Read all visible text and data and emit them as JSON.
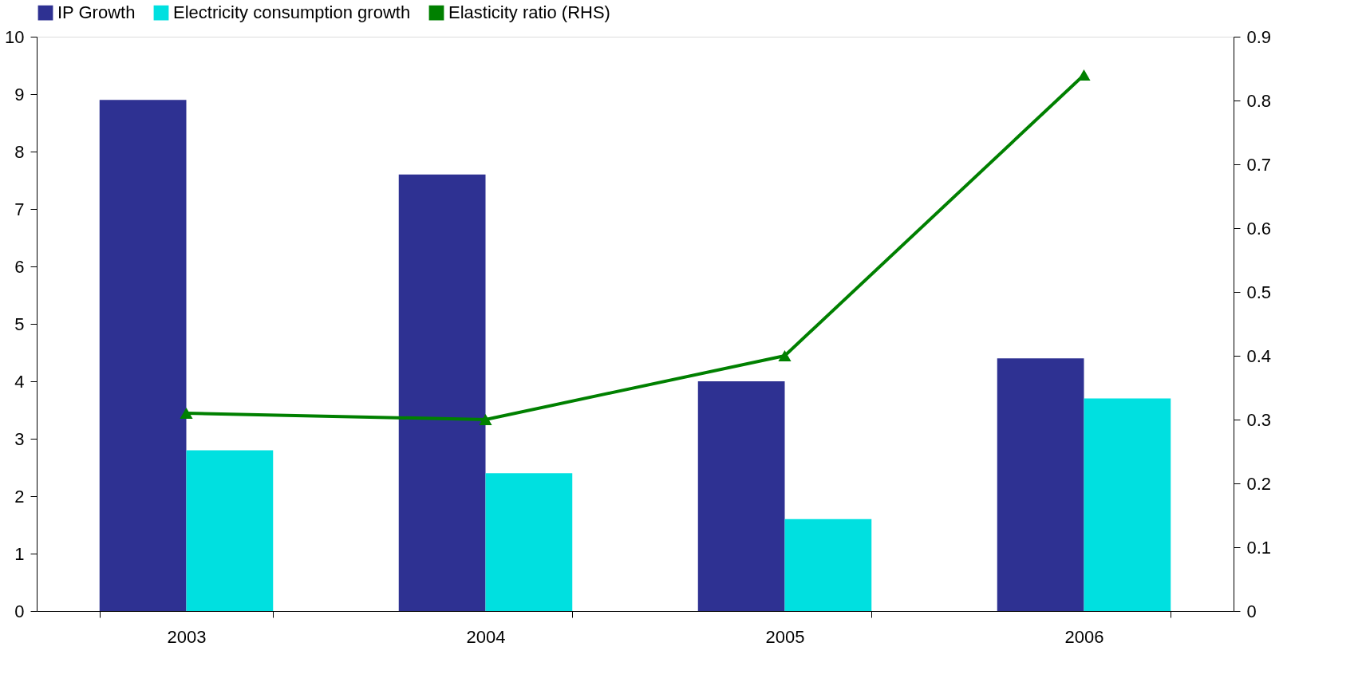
{
  "chart_data": {
    "type": "bar",
    "categories": [
      "2003",
      "2004",
      "2005",
      "2006"
    ],
    "series": [
      {
        "name": "IP Growth",
        "color": "#2e3192",
        "values": [
          8.9,
          7.6,
          4.0,
          4.4
        ]
      },
      {
        "name": "Electricity consumption growth",
        "color": "#00e0e0",
        "values": [
          2.8,
          2.4,
          1.6,
          3.7
        ]
      },
      {
        "name": "Elasticity ratio (RHS)",
        "color": "#008000",
        "type": "line",
        "axis": "y2",
        "marker": "triangle",
        "values": [
          0.31,
          0.3,
          0.4,
          0.84
        ]
      }
    ],
    "ylim": [
      0,
      10
    ],
    "yticks": [
      0,
      1,
      2,
      3,
      4,
      5,
      6,
      7,
      8,
      9,
      10
    ],
    "y2lim": [
      0,
      0.9
    ],
    "y2ticks": [
      0,
      0.1,
      0.2,
      0.3,
      0.4,
      0.5,
      0.6,
      0.7,
      0.8,
      0.9
    ],
    "legend": "top",
    "grid": false
  }
}
